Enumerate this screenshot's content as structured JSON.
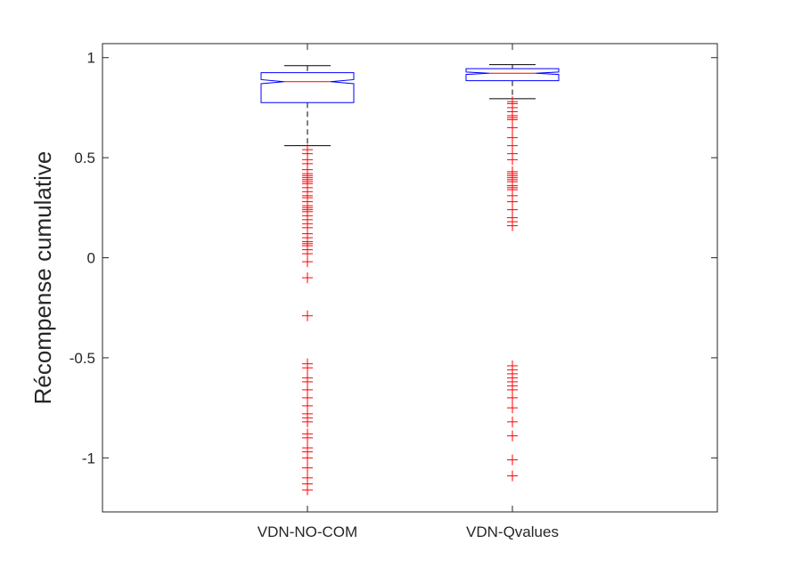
{
  "chart_data": {
    "type": "boxplot",
    "title": "",
    "xlabel": "",
    "ylabel": "Récompense cumulative",
    "ylim": [
      -1.27,
      1.07
    ],
    "yticks": [
      1,
      0.5,
      0,
      -0.5,
      -1
    ],
    "ytick_labels": [
      "1",
      "0.5",
      "0",
      "-0.5",
      "-1"
    ],
    "grid": false,
    "notched": true,
    "colors": {
      "box": "#0000ff",
      "median": "#ff0000",
      "whisker": "#000000",
      "outlier": "#ff0000",
      "axis": "#262626"
    },
    "categories": [
      "VDN-NO-COM",
      "VDN-Qvalues"
    ],
    "boxes": [
      {
        "name": "VDN-NO-COM",
        "q1": 0.775,
        "median": 0.88,
        "q3": 0.925,
        "notch_low": 0.87,
        "notch_high": 0.89,
        "whisker_low": 0.56,
        "whisker_high": 0.96,
        "outliers": [
          0.54,
          0.52,
          0.49,
          0.47,
          0.44,
          0.42,
          0.41,
          0.4,
          0.39,
          0.38,
          0.37,
          0.35,
          0.33,
          0.31,
          0.3,
          0.28,
          0.26,
          0.25,
          0.24,
          0.23,
          0.21,
          0.19,
          0.17,
          0.15,
          0.12,
          0.1,
          0.08,
          0.07,
          0.06,
          0.04,
          0.02,
          -0.02,
          -0.1,
          -0.29,
          -0.53,
          -0.55,
          -0.6,
          -0.62,
          -0.66,
          -0.7,
          -0.74,
          -0.78,
          -0.8,
          -0.82,
          -0.88,
          -0.9,
          -0.95,
          -0.97,
          -1.0,
          -1.05,
          -1.1,
          -1.13,
          -1.16
        ]
      },
      {
        "name": "VDN-Qvalues",
        "q1": 0.885,
        "median": 0.922,
        "q3": 0.945,
        "notch_low": 0.916,
        "notch_high": 0.928,
        "whisker_low": 0.795,
        "whisker_high": 0.965,
        "outliers": [
          0.78,
          0.77,
          0.75,
          0.73,
          0.71,
          0.7,
          0.69,
          0.65,
          0.6,
          0.56,
          0.52,
          0.49,
          0.43,
          0.42,
          0.41,
          0.4,
          0.39,
          0.38,
          0.36,
          0.35,
          0.34,
          0.31,
          0.28,
          0.24,
          0.2,
          0.18,
          0.16,
          -0.54,
          -0.56,
          -0.58,
          -0.6,
          -0.62,
          -0.64,
          -0.66,
          -0.7,
          -0.75,
          -0.82,
          -0.89,
          -1.01,
          -1.09
        ]
      }
    ]
  }
}
